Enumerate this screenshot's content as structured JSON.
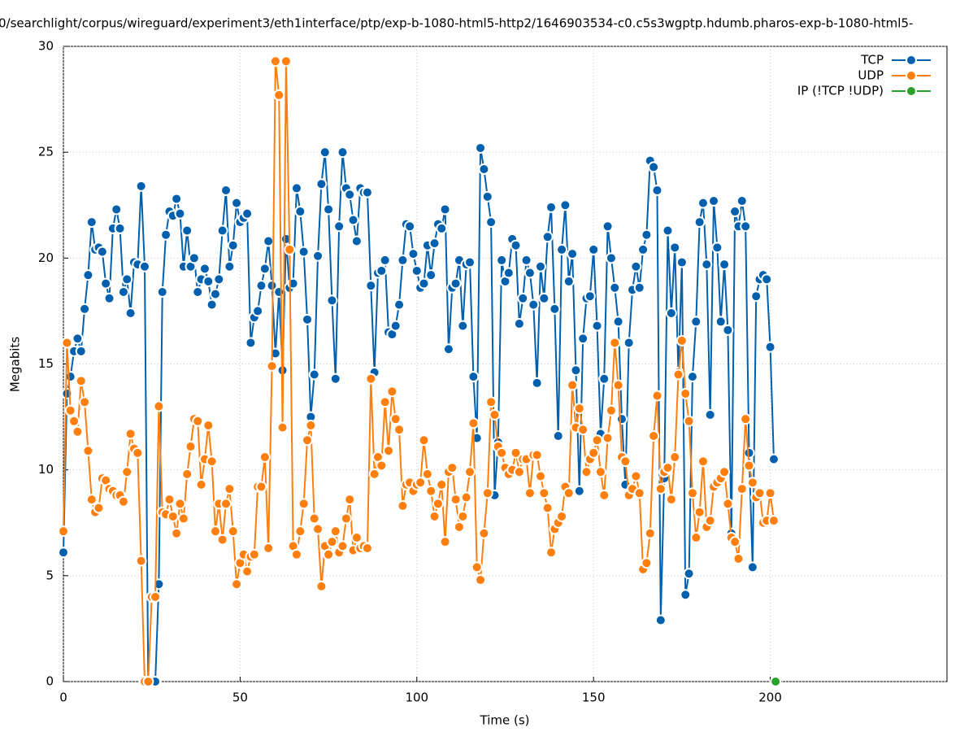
{
  "chart_data": {
    "type": "line",
    "title": "0/searchlight/corpus/wireguard/experiment3/eth1interface/ptp/exp-b-1080-html5-http2/1646903534-c0.c5s3wgptp.hdumb.pharos-exp-b-1080-html5-",
    "x_label": "Time (s)",
    "y_label": "Megabits",
    "xlim": [
      0,
      250
    ],
    "xticks": [
      0,
      50,
      100,
      150,
      200
    ],
    "ylim": [
      0,
      30
    ],
    "yticks": [
      0,
      5,
      10,
      15,
      20,
      25,
      30
    ],
    "grid": true,
    "legend": "top-right",
    "x": [
      0,
      1,
      2,
      3,
      4,
      5,
      6,
      7,
      8,
      9,
      10,
      11,
      12,
      13,
      14,
      15,
      16,
      17,
      18,
      19,
      20,
      21,
      22,
      23,
      24,
      25,
      26,
      27,
      28,
      29,
      30,
      31,
      32,
      33,
      34,
      35,
      36,
      37,
      38,
      39,
      40,
      41,
      42,
      43,
      44,
      45,
      46,
      47,
      48,
      49,
      50,
      51,
      52,
      53,
      54,
      55,
      56,
      57,
      58,
      59,
      60,
      61,
      62,
      63,
      64,
      65,
      66,
      67,
      68,
      69,
      70,
      71,
      72,
      73,
      74,
      75,
      76,
      77,
      78,
      79,
      80,
      81,
      82,
      83,
      84,
      85,
      86,
      87,
      88,
      89,
      90,
      91,
      92,
      93,
      94,
      95,
      96,
      97,
      98,
      99,
      100,
      101,
      102,
      103,
      104,
      105,
      106,
      107,
      108,
      109,
      110,
      111,
      112,
      113,
      114,
      115,
      116,
      117,
      118,
      119,
      120,
      121,
      122,
      123,
      124,
      125,
      126,
      127,
      128,
      129,
      130,
      131,
      132,
      133,
      134,
      135,
      136,
      137,
      138,
      139,
      140,
      141,
      142,
      143,
      144,
      145,
      146,
      147,
      148,
      149,
      150,
      151,
      152,
      153,
      154,
      155,
      156,
      157,
      158,
      159,
      160,
      161,
      162,
      163,
      164,
      165,
      166,
      167,
      168,
      169,
      170,
      171,
      172,
      173,
      174,
      175,
      176,
      177,
      178,
      179,
      180,
      181,
      182,
      183,
      184,
      185,
      186,
      187,
      188,
      189,
      190,
      191,
      192,
      193,
      194,
      195,
      196,
      197,
      198,
      199,
      200,
      201
    ],
    "series": [
      {
        "name": "TCP",
        "color": "#0060ad",
        "values": [
          6.1,
          13.6,
          14.4,
          15.6,
          16.2,
          15.6,
          17.6,
          19.2,
          21.7,
          20.4,
          20.5,
          20.3,
          18.8,
          18.1,
          21.4,
          22.3,
          21.4,
          18.4,
          19.0,
          17.4,
          19.8,
          19.7,
          23.4,
          19.6,
          0,
          0,
          0,
          4.6,
          18.4,
          21.1,
          22.2,
          22.0,
          22.8,
          22.1,
          19.6,
          21.3,
          19.6,
          20.0,
          18.4,
          19.0,
          19.5,
          18.9,
          17.8,
          18.3,
          19.0,
          21.3,
          23.2,
          19.6,
          20.6,
          22.6,
          21.7,
          21.9,
          22.1,
          16.0,
          17.2,
          17.5,
          18.7,
          19.5,
          20.8,
          18.7,
          15.5,
          18.4,
          14.7,
          20.9,
          18.6,
          18.8,
          23.3,
          22.2,
          20.3,
          17.1,
          12.5,
          14.5,
          20.1,
          23.5,
          25.0,
          22.3,
          18.0,
          14.3,
          21.5,
          25.0,
          23.3,
          23.0,
          21.8,
          20.8,
          23.3,
          23.1,
          23.1,
          18.7,
          14.6,
          19.3,
          19.4,
          19.9,
          16.5,
          16.4,
          16.8,
          17.8,
          19.9,
          21.6,
          21.5,
          20.2,
          19.4,
          18.6,
          18.8,
          20.6,
          19.2,
          20.7,
          21.6,
          21.4,
          22.3,
          15.7,
          18.6,
          18.8,
          19.9,
          16.8,
          19.7,
          19.8,
          14.4,
          11.5,
          25.2,
          24.2,
          22.9,
          21.7,
          8.8,
          11.3,
          19.9,
          18.9,
          19.3,
          20.9,
          20.6,
          16.9,
          18.1,
          19.9,
          19.3,
          17.8,
          14.1,
          19.6,
          18.1,
          21.0,
          22.4,
          17.6,
          11.6,
          20.4,
          22.5,
          18.9,
          20.2,
          14.7,
          9.0,
          16.2,
          18.1,
          18.2,
          20.4,
          16.8,
          11.7,
          14.3,
          21.5,
          20.0,
          18.6,
          17.0,
          12.4,
          9.3,
          16.0,
          18.5,
          19.6,
          18.6,
          20.4,
          21.1,
          24.6,
          24.3,
          23.2,
          2.9,
          9.6,
          21.3,
          17.4,
          20.5,
          14.6,
          19.8,
          4.1,
          5.1,
          14.4,
          17.0,
          21.7,
          22.6,
          19.7,
          12.6,
          22.7,
          20.5,
          17.0,
          19.7,
          16.6,
          7.0,
          22.2,
          21.5,
          22.7,
          21.5,
          10.8,
          5.4,
          18.2,
          19.0,
          19.2,
          19.0,
          15.8,
          10.5
        ]
      },
      {
        "name": "UDP",
        "color": "#ff7f0e",
        "values": [
          7.1,
          16.0,
          12.8,
          12.3,
          11.8,
          14.2,
          13.2,
          10.9,
          8.6,
          8.0,
          8.2,
          9.6,
          9.5,
          9.1,
          9.0,
          8.8,
          8.8,
          8.5,
          9.9,
          11.7,
          11.0,
          10.8,
          5.7,
          0,
          0,
          4.0,
          4.0,
          13.0,
          8.0,
          7.9,
          8.6,
          7.8,
          7.0,
          8.4,
          7.7,
          9.8,
          11.1,
          12.4,
          12.3,
          9.3,
          10.5,
          12.1,
          10.4,
          7.1,
          8.4,
          6.7,
          8.4,
          9.1,
          7.1,
          4.6,
          5.6,
          6.0,
          5.2,
          5.9,
          6.0,
          9.2,
          9.2,
          10.6,
          6.3,
          14.9,
          29.3,
          27.7,
          12.0,
          29.3,
          20.4,
          6.4,
          6.0,
          7.1,
          8.4,
          11.4,
          12.1,
          7.7,
          7.2,
          4.5,
          6.4,
          6.0,
          6.6,
          7.1,
          6.1,
          6.4,
          7.7,
          8.6,
          6.2,
          6.8,
          6.3,
          6.4,
          6.3,
          14.3,
          9.8,
          10.6,
          10.2,
          13.2,
          10.9,
          13.7,
          12.4,
          11.9,
          8.3,
          9.3,
          9.4,
          9.0,
          9.3,
          9.4,
          11.4,
          9.8,
          9.0,
          7.8,
          8.4,
          9.3,
          6.6,
          9.9,
          10.1,
          8.6,
          7.3,
          7.8,
          8.7,
          9.9,
          12.2,
          5.4,
          4.8,
          7.0,
          8.9,
          13.2,
          12.6,
          11.1,
          10.8,
          10.1,
          9.8,
          10.0,
          10.8,
          9.9,
          10.5,
          10.5,
          8.9,
          10.7,
          10.7,
          9.7,
          8.9,
          8.2,
          6.1,
          7.2,
          7.5,
          7.8,
          9.2,
          8.9,
          14.0,
          12.0,
          12.9,
          11.9,
          9.9,
          10.5,
          10.8,
          11.4,
          9.9,
          8.8,
          11.5,
          12.8,
          16.0,
          14.0,
          10.6,
          10.4,
          8.8,
          9.1,
          9.7,
          8.9,
          5.3,
          5.6,
          7.0,
          11.6,
          13.5,
          9.1,
          9.9,
          10.1,
          8.6,
          10.6,
          14.5,
          16.1,
          13.6,
          12.3,
          8.9,
          6.8,
          8.0,
          10.4,
          7.3,
          7.6,
          9.2,
          9.4,
          9.6,
          9.9,
          8.4,
          6.8,
          6.6,
          5.8,
          9.1,
          12.4,
          10.2,
          9.4,
          8.7,
          8.9,
          7.5,
          7.6,
          8.9,
          7.6
        ]
      },
      {
        "name": "IP (!TCP  !UDP)",
        "color": "#2ca02c",
        "x": [
          201.5
        ],
        "values": [
          0
        ]
      }
    ]
  }
}
